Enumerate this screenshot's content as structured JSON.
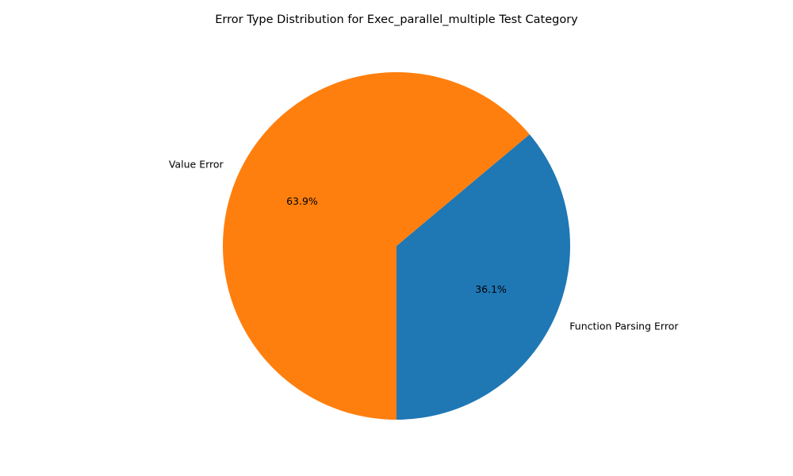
{
  "chart_data": {
    "type": "pie",
    "title": "Error Type Distribution for Exec_parallel_multiple Test Category",
    "start_angle_deg": 270,
    "direction": "counterclockwise",
    "slices": [
      {
        "label": "Function Parsing Error",
        "value": 36.1,
        "pct_label": "36.1%",
        "color": "#1f77b4"
      },
      {
        "label": "Value Error",
        "value": 63.9,
        "pct_label": "63.9%",
        "color": "#ff7f0e"
      }
    ]
  }
}
